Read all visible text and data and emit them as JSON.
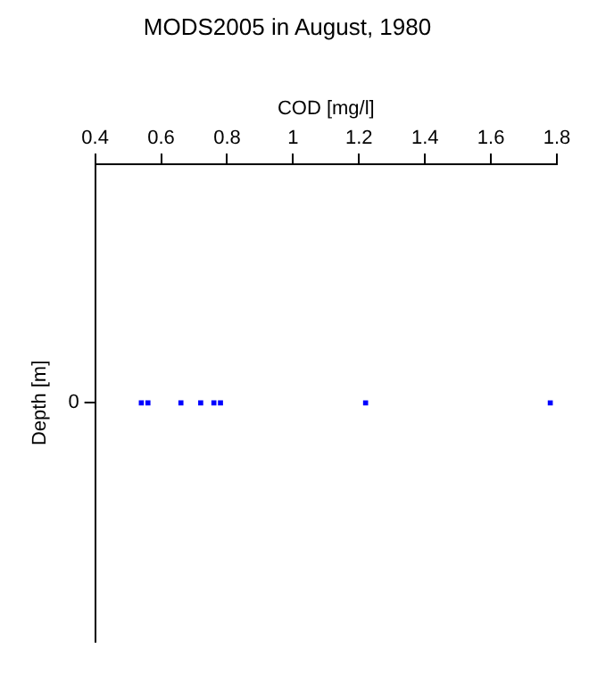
{
  "chart_data": {
    "type": "scatter",
    "title": "MODS2005 in August, 1980",
    "xlabel": "COD [mg/l]",
    "ylabel": "Depth [m]",
    "orientation": "horizontal",
    "categories": [
      "0"
    ],
    "series": [
      {
        "color": "#0000ff",
        "values": [
          0.54
        ]
      },
      {
        "color": "#0000ff",
        "values": [
          0.56
        ]
      },
      {
        "color": "#0000ff",
        "values": [
          0.66
        ]
      },
      {
        "color": "#0000ff",
        "values": [
          0.72
        ]
      },
      {
        "color": "#0000ff",
        "values": [
          0.76
        ]
      },
      {
        "color": "#0000ff",
        "values": [
          0.78
        ]
      },
      {
        "color": "#0000ff",
        "values": [
          1.22
        ]
      },
      {
        "color": "#0000ff",
        "values": [
          1.78
        ]
      }
    ],
    "xlim": [
      0.4,
      1.8
    ],
    "xticks": [
      0.4,
      0.6,
      0.8,
      1,
      1.2,
      1.4,
      1.6,
      1.8
    ],
    "grid": false,
    "legend": false,
    "marker": "square"
  }
}
